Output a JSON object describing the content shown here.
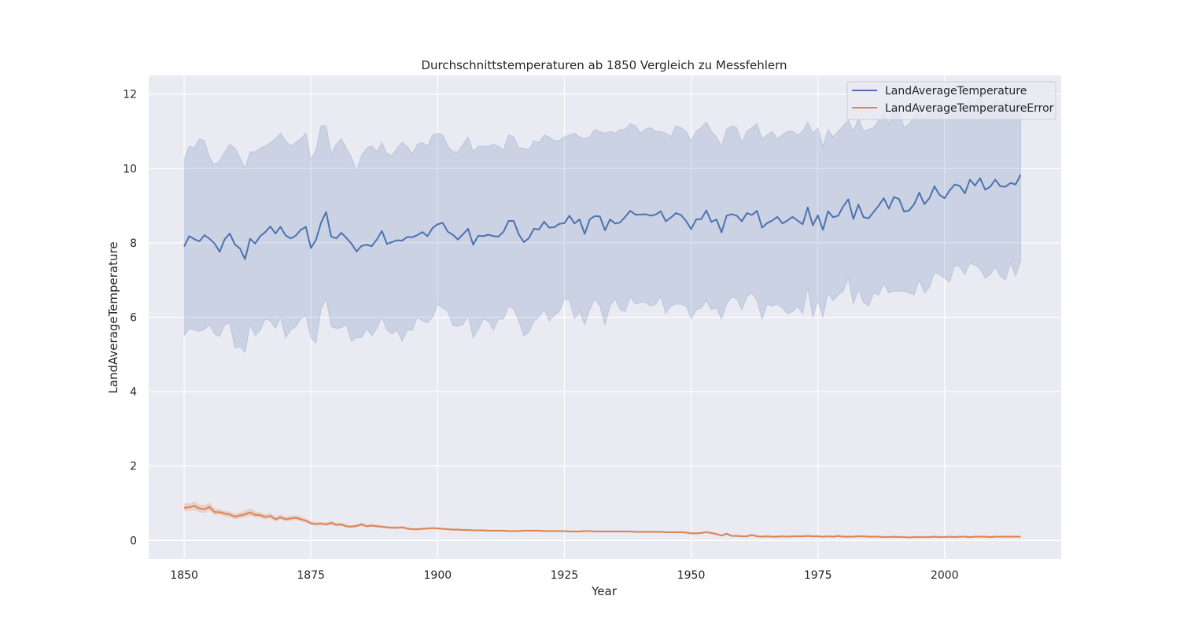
{
  "chart_data": {
    "type": "line",
    "title": "Durchschnittstemperaturen ab 1850 Vergleich zu Messfehlern",
    "xlabel": "Year",
    "ylabel": "LandAverageTemperature",
    "xlim": [
      1843,
      2023
    ],
    "ylim": [
      -0.5,
      12.5
    ],
    "x_ticks": [
      1850,
      1875,
      1900,
      1925,
      1950,
      1975,
      2000
    ],
    "y_ticks": [
      0,
      2,
      4,
      6,
      8,
      10,
      12
    ],
    "grid": true,
    "legend_position": "top-right",
    "x": [
      1850,
      1851,
      1852,
      1853,
      1854,
      1855,
      1856,
      1857,
      1858,
      1859,
      1860,
      1861,
      1862,
      1863,
      1864,
      1865,
      1866,
      1867,
      1868,
      1869,
      1870,
      1871,
      1872,
      1873,
      1874,
      1875,
      1876,
      1877,
      1878,
      1879,
      1880,
      1881,
      1882,
      1883,
      1884,
      1885,
      1886,
      1887,
      1888,
      1889,
      1890,
      1891,
      1892,
      1893,
      1894,
      1895,
      1896,
      1897,
      1898,
      1899,
      1900,
      1901,
      1902,
      1903,
      1904,
      1905,
      1906,
      1907,
      1908,
      1909,
      1910,
      1911,
      1912,
      1913,
      1914,
      1915,
      1916,
      1917,
      1918,
      1919,
      1920,
      1921,
      1922,
      1923,
      1924,
      1925,
      1926,
      1927,
      1928,
      1929,
      1930,
      1931,
      1932,
      1933,
      1934,
      1935,
      1936,
      1937,
      1938,
      1939,
      1940,
      1941,
      1942,
      1943,
      1944,
      1945,
      1946,
      1947,
      1948,
      1949,
      1950,
      1951,
      1952,
      1953,
      1954,
      1955,
      1956,
      1957,
      1958,
      1959,
      1960,
      1961,
      1962,
      1963,
      1964,
      1965,
      1966,
      1967,
      1968,
      1969,
      1970,
      1971,
      1972,
      1973,
      1974,
      1975,
      1976,
      1977,
      1978,
      1979,
      1980,
      1981,
      1982,
      1983,
      1984,
      1985,
      1986,
      1987,
      1988,
      1989,
      1990,
      1991,
      1992,
      1993,
      1994,
      1995,
      1996,
      1997,
      1998,
      1999,
      2000,
      2001,
      2002,
      2003,
      2004,
      2005,
      2006,
      2007,
      2008,
      2009,
      2010,
      2011,
      2012,
      2013,
      2014,
      2015
    ],
    "series": [
      {
        "name": "LandAverageTemperature",
        "color": "#4c72b0",
        "values": [
          7.9,
          8.18,
          8.1,
          8.04,
          8.21,
          8.11,
          7.98,
          7.76,
          8.1,
          8.25,
          7.96,
          7.85,
          7.56,
          8.11,
          7.98,
          8.18,
          8.29,
          8.44,
          8.25,
          8.43,
          8.2,
          8.12,
          8.19,
          8.35,
          8.43,
          7.86,
          8.08,
          8.54,
          8.83,
          8.17,
          8.12,
          8.27,
          8.13,
          7.98,
          7.77,
          7.92,
          7.95,
          7.91,
          8.09,
          8.32,
          7.97,
          8.02,
          8.07,
          8.06,
          8.16,
          8.15,
          8.21,
          8.29,
          8.18,
          8.4,
          8.5,
          8.54,
          8.3,
          8.22,
          8.09,
          8.23,
          8.38,
          7.95,
          8.19,
          8.18,
          8.22,
          8.18,
          8.17,
          8.3,
          8.59,
          8.59,
          8.23,
          8.02,
          8.13,
          8.38,
          8.36,
          8.57,
          8.41,
          8.42,
          8.51,
          8.53,
          8.73,
          8.52,
          8.63,
          8.24,
          8.63,
          8.72,
          8.71,
          8.34,
          8.63,
          8.52,
          8.55,
          8.7,
          8.86,
          8.76,
          8.76,
          8.77,
          8.73,
          8.76,
          8.85,
          8.58,
          8.68,
          8.8,
          8.75,
          8.59,
          8.37,
          8.63,
          8.64,
          8.87,
          8.56,
          8.63,
          8.28,
          8.73,
          8.77,
          8.73,
          8.58,
          8.8,
          8.75,
          8.86,
          8.41,
          8.53,
          8.6,
          8.7,
          8.52,
          8.6,
          8.7,
          8.6,
          8.5,
          8.95,
          8.47,
          8.74,
          8.35,
          8.85,
          8.69,
          8.73,
          8.98,
          9.17,
          8.64,
          9.03,
          8.69,
          8.66,
          8.83,
          9.0,
          9.2,
          8.92,
          9.23,
          9.18,
          8.84,
          8.87,
          9.04,
          9.35,
          9.04,
          9.2,
          9.52,
          9.29,
          9.2,
          9.41,
          9.57,
          9.53,
          9.33,
          9.7,
          9.54,
          9.74,
          9.43,
          9.51,
          9.7,
          9.52,
          9.51,
          9.61,
          9.57,
          9.83
        ]
      },
      {
        "name": "LandAverageTemperatureError",
        "color": "#dd8452",
        "values": [
          0.88,
          0.89,
          0.93,
          0.86,
          0.84,
          0.9,
          0.76,
          0.76,
          0.72,
          0.7,
          0.64,
          0.67,
          0.7,
          0.75,
          0.69,
          0.68,
          0.63,
          0.66,
          0.57,
          0.62,
          0.57,
          0.59,
          0.61,
          0.57,
          0.53,
          0.46,
          0.44,
          0.45,
          0.43,
          0.47,
          0.42,
          0.43,
          0.38,
          0.37,
          0.39,
          0.43,
          0.38,
          0.4,
          0.38,
          0.37,
          0.35,
          0.34,
          0.34,
          0.35,
          0.32,
          0.3,
          0.3,
          0.31,
          0.32,
          0.33,
          0.32,
          0.31,
          0.3,
          0.29,
          0.29,
          0.28,
          0.28,
          0.27,
          0.27,
          0.27,
          0.26,
          0.26,
          0.26,
          0.26,
          0.25,
          0.25,
          0.25,
          0.26,
          0.26,
          0.26,
          0.26,
          0.25,
          0.25,
          0.25,
          0.25,
          0.25,
          0.24,
          0.24,
          0.24,
          0.25,
          0.25,
          0.24,
          0.24,
          0.24,
          0.24,
          0.24,
          0.24,
          0.24,
          0.24,
          0.23,
          0.23,
          0.23,
          0.23,
          0.23,
          0.23,
          0.22,
          0.22,
          0.22,
          0.22,
          0.21,
          0.19,
          0.19,
          0.2,
          0.22,
          0.2,
          0.17,
          0.13,
          0.18,
          0.12,
          0.12,
          0.11,
          0.11,
          0.15,
          0.11,
          0.1,
          0.11,
          0.1,
          0.1,
          0.11,
          0.1,
          0.11,
          0.11,
          0.11,
          0.12,
          0.11,
          0.11,
          0.1,
          0.11,
          0.1,
          0.12,
          0.1,
          0.1,
          0.1,
          0.11,
          0.11,
          0.1,
          0.1,
          0.1,
          0.09,
          0.09,
          0.1,
          0.09,
          0.09,
          0.08,
          0.09,
          0.09,
          0.09,
          0.09,
          0.1,
          0.09,
          0.09,
          0.1,
          0.09,
          0.1,
          0.1,
          0.09,
          0.1,
          0.1,
          0.1,
          0.09,
          0.1,
          0.1,
          0.1,
          0.1,
          0.1,
          0.1
        ]
      }
    ],
    "band_low": [
      5.5,
      5.7,
      5.65,
      5.62,
      5.68,
      5.8,
      5.55,
      5.48,
      5.8,
      5.85,
      5.17,
      5.22,
      5.05,
      5.8,
      5.5,
      5.65,
      5.95,
      5.9,
      5.7,
      6.0,
      5.45,
      5.65,
      5.75,
      5.95,
      6.05,
      5.45,
      5.3,
      6.2,
      6.5,
      5.75,
      5.7,
      5.72,
      5.8,
      5.35,
      5.45,
      5.45,
      5.7,
      5.5,
      5.7,
      6.0,
      5.65,
      5.55,
      5.65,
      5.35,
      5.65,
      5.65,
      6.0,
      5.9,
      5.85,
      6.0,
      6.35,
      6.25,
      6.15,
      5.78,
      5.75,
      5.8,
      6.05,
      5.45,
      5.65,
      5.95,
      5.9,
      5.65,
      5.95,
      5.95,
      6.3,
      6.22,
      5.9,
      5.5,
      5.6,
      5.9,
      6.0,
      6.2,
      5.9,
      6.05,
      6.15,
      6.5,
      6.45,
      5.95,
      6.15,
      5.8,
      6.2,
      6.5,
      6.3,
      5.8,
      6.3,
      6.5,
      6.2,
      6.15,
      6.55,
      6.35,
      6.4,
      6.4,
      6.3,
      6.35,
      6.55,
      6.1,
      6.3,
      6.35,
      6.35,
      6.3,
      5.95,
      6.2,
      6.25,
      6.45,
      6.2,
      6.25,
      5.95,
      6.35,
      6.55,
      6.5,
      6.2,
      6.55,
      6.65,
      6.45,
      5.95,
      6.35,
      6.3,
      6.35,
      6.25,
      6.1,
      6.15,
      6.3,
      6.1,
      6.8,
      6.0,
      6.45,
      6.0,
      6.65,
      6.45,
      6.6,
      6.7,
      7.05,
      6.35,
      6.75,
      6.4,
      6.3,
      6.65,
      6.6,
      6.9,
      6.65,
      6.7,
      6.7,
      6.7,
      6.65,
      6.6,
      7.0,
      6.65,
      6.8,
      7.2,
      7.15,
      7.05,
      6.95,
      7.4,
      7.35,
      7.15,
      7.45,
      7.4,
      7.3,
      7.05,
      7.15,
      7.35,
      7.1,
      7.0,
      7.45,
      7.1,
      7.5
    ],
    "band_high": [
      10.25,
      10.6,
      10.55,
      10.8,
      10.75,
      10.3,
      10.1,
      10.2,
      10.45,
      10.65,
      10.55,
      10.3,
      10.0,
      10.45,
      10.45,
      10.55,
      10.6,
      10.7,
      10.8,
      10.95,
      10.75,
      10.6,
      10.7,
      10.8,
      10.95,
      10.25,
      10.5,
      11.15,
      11.15,
      10.4,
      10.65,
      10.8,
      10.55,
      10.3,
      9.95,
      10.35,
      10.55,
      10.6,
      10.45,
      10.7,
      10.4,
      10.35,
      10.55,
      10.7,
      10.6,
      10.4,
      10.65,
      10.7,
      10.6,
      10.9,
      10.95,
      10.9,
      10.6,
      10.45,
      10.45,
      10.65,
      10.85,
      10.45,
      10.6,
      10.6,
      10.6,
      10.65,
      10.6,
      10.5,
      10.9,
      10.85,
      10.55,
      10.55,
      10.5,
      10.75,
      10.7,
      10.9,
      10.85,
      10.75,
      10.75,
      10.85,
      10.9,
      10.95,
      10.85,
      10.8,
      10.85,
      11.05,
      11.0,
      10.95,
      11.0,
      10.95,
      11.05,
      11.05,
      11.2,
      11.15,
      10.95,
      11.05,
      11.1,
      11.0,
      11.0,
      10.95,
      10.85,
      11.15,
      11.1,
      11.0,
      10.75,
      11.0,
      11.1,
      11.25,
      11.0,
      10.85,
      10.6,
      11.05,
      11.15,
      11.1,
      10.7,
      11.0,
      11.1,
      11.2,
      10.8,
      10.9,
      11.0,
      10.8,
      10.9,
      11.0,
      11.0,
      10.9,
      11.0,
      11.25,
      10.95,
      11.1,
      10.6,
      11.05,
      10.85,
      11.0,
      11.15,
      11.3,
      11.0,
      11.35,
      11.0,
      11.05,
      11.1,
      11.3,
      11.55,
      11.2,
      11.6,
      11.55,
      11.1,
      11.2,
      11.4,
      11.6,
      11.35,
      11.5,
      11.7,
      11.5,
      11.4,
      11.75,
      11.7,
      11.75,
      11.5,
      11.85,
      11.7,
      11.95,
      11.55,
      11.65,
      11.85,
      11.75,
      11.8,
      11.8,
      11.9,
      11.95
    ],
    "error_band_low": [
      0.78,
      0.8,
      0.82,
      0.76,
      0.74,
      0.8,
      0.68,
      0.7,
      0.64,
      0.62,
      0.57,
      0.6,
      0.62,
      0.66,
      0.62,
      0.61,
      0.57,
      0.59,
      0.51,
      0.56,
      0.51,
      0.53,
      0.55,
      0.51,
      0.48,
      0.41,
      0.4,
      0.41,
      0.39,
      0.42,
      0.38,
      0.39,
      0.34,
      0.34,
      0.35,
      0.39,
      0.35,
      0.37,
      0.35,
      0.34,
      0.32,
      0.31,
      0.31,
      0.32,
      0.29,
      0.28,
      0.28,
      0.29,
      0.3,
      0.31,
      0.3,
      0.29,
      0.28,
      0.27,
      0.27,
      0.26,
      0.26,
      0.25,
      0.25,
      0.25,
      0.24,
      0.24,
      0.24,
      0.24,
      0.23,
      0.23,
      0.23,
      0.24,
      0.24,
      0.24,
      0.24,
      0.23,
      0.23,
      0.23,
      0.23,
      0.23,
      0.22,
      0.22,
      0.22,
      0.23,
      0.23,
      0.22,
      0.22,
      0.22,
      0.22,
      0.22,
      0.22,
      0.22,
      0.22,
      0.21,
      0.21,
      0.21,
      0.21,
      0.21,
      0.21,
      0.2,
      0.2,
      0.2,
      0.2,
      0.19,
      0.17,
      0.17,
      0.18,
      0.2,
      0.18,
      0.15,
      0.11,
      0.16,
      0.1,
      0.1,
      0.09,
      0.09,
      0.13,
      0.09,
      0.08,
      0.09,
      0.08,
      0.08,
      0.09,
      0.08,
      0.09,
      0.09,
      0.09,
      0.1,
      0.09,
      0.09,
      0.08,
      0.09,
      0.08,
      0.1,
      0.08,
      0.08,
      0.08,
      0.09,
      0.09,
      0.08,
      0.08,
      0.08,
      0.07,
      0.07,
      0.08,
      0.07,
      0.07,
      0.06,
      0.07,
      0.07,
      0.07,
      0.07,
      0.08,
      0.07,
      0.07,
      0.08,
      0.07,
      0.08,
      0.08,
      0.07,
      0.08,
      0.08,
      0.08,
      0.07,
      0.08,
      0.08,
      0.08,
      0.08,
      0.08,
      0.08
    ],
    "error_band_high": [
      1.0,
      0.99,
      1.05,
      0.96,
      0.95,
      1.02,
      0.86,
      0.84,
      0.8,
      0.78,
      0.72,
      0.75,
      0.8,
      0.86,
      0.78,
      0.76,
      0.7,
      0.74,
      0.64,
      0.7,
      0.64,
      0.66,
      0.68,
      0.64,
      0.59,
      0.52,
      0.49,
      0.5,
      0.48,
      0.53,
      0.47,
      0.48,
      0.43,
      0.41,
      0.44,
      0.48,
      0.42,
      0.44,
      0.42,
      0.41,
      0.39,
      0.38,
      0.38,
      0.39,
      0.36,
      0.33,
      0.33,
      0.34,
      0.35,
      0.36,
      0.35,
      0.34,
      0.33,
      0.32,
      0.32,
      0.31,
      0.31,
      0.3,
      0.3,
      0.3,
      0.29,
      0.29,
      0.29,
      0.29,
      0.28,
      0.28,
      0.28,
      0.29,
      0.29,
      0.29,
      0.29,
      0.28,
      0.28,
      0.28,
      0.28,
      0.28,
      0.27,
      0.27,
      0.27,
      0.28,
      0.28,
      0.27,
      0.27,
      0.27,
      0.27,
      0.27,
      0.27,
      0.27,
      0.27,
      0.26,
      0.26,
      0.26,
      0.26,
      0.26,
      0.26,
      0.25,
      0.25,
      0.25,
      0.25,
      0.24,
      0.22,
      0.22,
      0.23,
      0.25,
      0.23,
      0.2,
      0.16,
      0.21,
      0.15,
      0.15,
      0.14,
      0.14,
      0.18,
      0.14,
      0.13,
      0.14,
      0.13,
      0.13,
      0.14,
      0.13,
      0.14,
      0.14,
      0.14,
      0.15,
      0.14,
      0.14,
      0.13,
      0.14,
      0.13,
      0.15,
      0.13,
      0.13,
      0.13,
      0.14,
      0.14,
      0.13,
      0.13,
      0.13,
      0.12,
      0.12,
      0.13,
      0.12,
      0.12,
      0.11,
      0.12,
      0.12,
      0.12,
      0.12,
      0.13,
      0.12,
      0.12,
      0.13,
      0.12,
      0.13,
      0.13,
      0.12,
      0.13,
      0.13,
      0.13,
      0.12,
      0.13,
      0.13,
      0.13,
      0.13,
      0.13,
      0.13
    ]
  }
}
